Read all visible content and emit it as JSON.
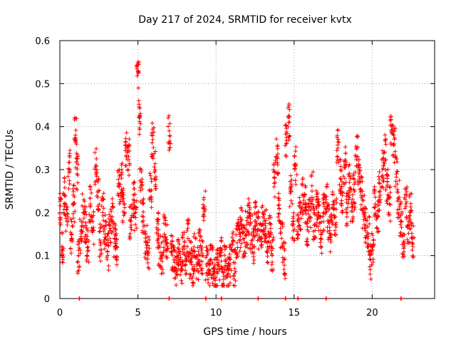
{
  "chart_data": {
    "type": "scatter",
    "title": "Day 217 of 2024, SRMTID for receiver kvtx",
    "xlabel": "GPS time / hours",
    "ylabel": "SRMTID / TECUs",
    "xlim": [
      0,
      24
    ],
    "ylim": [
      0,
      0.6
    ],
    "grid": true,
    "xticks": [
      0,
      5,
      10,
      15,
      20
    ],
    "yticks": [
      0,
      0.1,
      0.2,
      0.3,
      0.4,
      0.5,
      0.6
    ],
    "xtick_labels": [
      "0",
      "5",
      "10",
      "15",
      "20"
    ],
    "ytick_labels": [
      "0",
      "0.1",
      "0.2",
      "0.3",
      "0.4",
      "0.5",
      "0.6"
    ],
    "marker": "+",
    "color": "#ff0000",
    "series": [
      {
        "name": "SRMTID",
        "x": [
          0.0,
          0.15,
          0.3,
          0.45,
          0.6,
          0.75,
          0.9,
          1.0,
          1.1,
          1.2,
          1.35,
          1.5,
          1.65,
          1.8,
          1.95,
          2.1,
          2.3,
          2.45,
          2.6,
          2.75,
          2.9,
          3.05,
          3.2,
          3.35,
          3.5,
          3.65,
          3.8,
          3.95,
          4.1,
          4.25,
          4.4,
          4.55,
          4.7,
          4.85,
          5.0,
          5.1,
          5.2,
          5.35,
          5.5,
          5.65,
          5.8,
          5.95,
          6.1,
          6.25,
          6.4,
          6.55,
          6.7,
          6.85,
          7.0,
          7.15,
          7.3,
          7.45,
          7.6,
          7.75,
          7.9,
          8.05,
          8.2,
          8.35,
          8.5,
          8.65,
          8.8,
          8.95,
          9.1,
          9.25,
          9.4,
          9.55,
          9.7,
          9.85,
          10.0,
          10.15,
          10.3,
          10.45,
          10.6,
          10.75,
          10.9,
          11.05,
          11.2,
          11.35,
          11.5,
          11.65,
          11.8,
          11.95,
          12.1,
          12.25,
          12.4,
          12.55,
          12.7,
          12.85,
          13.0,
          13.15,
          13.3,
          13.45,
          13.6,
          13.75,
          13.9,
          14.05,
          14.2,
          14.35,
          14.5,
          14.65,
          14.8,
          14.95,
          15.1,
          15.25,
          15.4,
          15.55,
          15.7,
          15.85,
          16.0,
          16.15,
          16.3,
          16.45,
          16.6,
          16.75,
          16.9,
          17.05,
          17.2,
          17.35,
          17.5,
          17.65,
          17.8,
          17.95,
          18.1,
          18.25,
          18.4,
          18.55,
          18.7,
          18.85,
          19.0,
          19.15,
          19.3,
          19.45,
          19.6,
          19.75,
          19.9,
          20.05,
          20.2,
          20.35,
          20.5,
          20.65,
          20.8,
          20.95,
          21.1,
          21.25,
          21.4,
          21.55,
          21.7,
          21.85,
          22.0,
          22.15,
          22.3,
          22.45,
          22.6
        ],
        "y": [
          0.2,
          0.12,
          0.24,
          0.18,
          0.3,
          0.15,
          0.22,
          0.38,
          0.29,
          0.1,
          0.14,
          0.2,
          0.17,
          0.12,
          0.22,
          0.16,
          0.31,
          0.25,
          0.13,
          0.2,
          0.15,
          0.11,
          0.17,
          0.19,
          0.14,
          0.12,
          0.26,
          0.28,
          0.22,
          0.35,
          0.33,
          0.18,
          0.23,
          0.2,
          0.53,
          0.42,
          0.27,
          0.19,
          0.13,
          0.11,
          0.25,
          0.37,
          0.3,
          0.16,
          0.12,
          0.1,
          0.15,
          0.13,
          0.39,
          0.11,
          0.09,
          0.07,
          0.1,
          0.08,
          0.12,
          0.1,
          0.14,
          0.09,
          0.07,
          0.11,
          0.08,
          0.12,
          0.1,
          0.21,
          0.08,
          0.06,
          0.09,
          0.07,
          0.05,
          0.08,
          0.1,
          0.06,
          0.09,
          0.05,
          0.08,
          0.11,
          0.07,
          0.13,
          0.15,
          0.17,
          0.14,
          0.16,
          0.19,
          0.15,
          0.12,
          0.18,
          0.16,
          0.14,
          0.19,
          0.17,
          0.12,
          0.15,
          0.1,
          0.28,
          0.33,
          0.21,
          0.14,
          0.09,
          0.36,
          0.41,
          0.25,
          0.18,
          0.31,
          0.15,
          0.2,
          0.24,
          0.22,
          0.16,
          0.19,
          0.25,
          0.17,
          0.21,
          0.19,
          0.15,
          0.2,
          0.23,
          0.18,
          0.15,
          0.21,
          0.19,
          0.35,
          0.28,
          0.24,
          0.31,
          0.2,
          0.27,
          0.22,
          0.25,
          0.35,
          0.29,
          0.24,
          0.2,
          0.17,
          0.15,
          0.09,
          0.12,
          0.22,
          0.19,
          0.25,
          0.3,
          0.34,
          0.26,
          0.22,
          0.4,
          0.36,
          0.29,
          0.23,
          0.18,
          0.13,
          0.22,
          0.17,
          0.2,
          0.14
        ]
      }
    ],
    "baseline_markers_x": [
      1.25,
      7.0,
      9.35,
      10.35,
      12.7,
      14.45,
      15.25,
      17.05,
      21.85
    ]
  }
}
